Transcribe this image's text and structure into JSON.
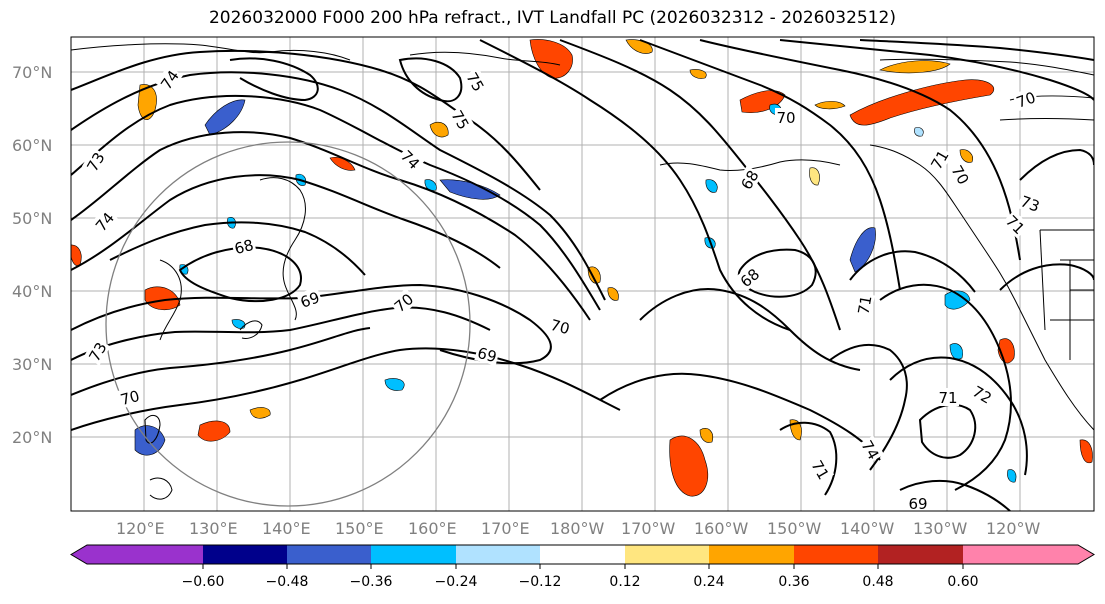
{
  "title": "2026032000 F000 200 hPa refract., IVT Landfall PC (2026032312 - 2026032512)",
  "lat_labels": [
    "70°N",
    "60°N",
    "50°N",
    "40°N",
    "30°N",
    "20°N"
  ],
  "lon_labels": [
    "120°E",
    "130°E",
    "140°E",
    "150°E",
    "160°E",
    "170°E",
    "180°W",
    "170°W",
    "160°W",
    "150°W",
    "140°W",
    "130°W",
    "120°W"
  ],
  "colorbar": {
    "ticks": [
      "−0.60",
      "−0.48",
      "−0.36",
      "−0.24",
      "−0.12",
      "0.12",
      "0.24",
      "0.36",
      "0.48",
      "0.60"
    ],
    "colors": [
      "#9a32cd",
      "#00008b",
      "#3a5fcd",
      "#00bfff",
      "#b0e2ff",
      "#ffffff",
      "#ffe680",
      "#ffa500",
      "#ff4500",
      "#b22222",
      "#ff82ab"
    ]
  },
  "contour_labels": [
    "74",
    "75",
    "75",
    "74",
    "73",
    "74",
    "68",
    "69",
    "70",
    "70",
    "69",
    "70",
    "68",
    "68",
    "71",
    "70",
    "71",
    "72",
    "74",
    "71",
    "69",
    "70",
    "71",
    "73",
    "73",
    "70",
    "71"
  ]
}
